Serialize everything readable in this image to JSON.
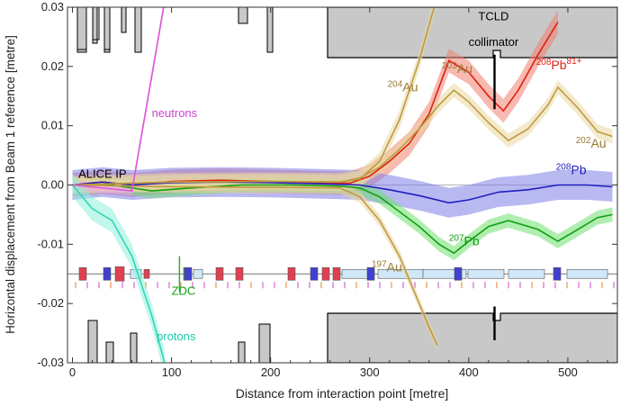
{
  "chart_data": {
    "type": "line",
    "xlabel": "Distance from interaction point [metre]",
    "ylabel": "Horizontal displacement from Beam 1 reference [metre]",
    "xlim": [
      -5,
      550
    ],
    "ylim": [
      -0.03,
      0.03
    ],
    "xticks": [
      0,
      100,
      200,
      300,
      400,
      500
    ],
    "yticks": [
      -0.03,
      -0.02,
      -0.01,
      0.0,
      0.01,
      0.02,
      0.03
    ],
    "xtick_labels": [
      "0",
      "100",
      "200",
      "300",
      "400",
      "500"
    ],
    "ytick_labels": [
      "-0.03",
      "-0.02",
      "-0.01",
      "0.00",
      "0.01",
      "0.02",
      "0.03"
    ],
    "grid": false,
    "reference_line_y": 0,
    "beamline_y": -0.015,
    "series": [
      {
        "key": "pb208_81",
        "color": "#e02010",
        "band": "#f08070",
        "x": [
          0,
          30,
          60,
          100,
          150,
          200,
          250,
          280,
          300,
          320,
          340,
          360,
          380,
          400,
          420,
          435,
          450,
          470,
          490
        ],
        "y": [
          0,
          0.0005,
          0,
          0.0006,
          0.0008,
          0.0006,
          0.0004,
          0.0003,
          0.0015,
          0.004,
          0.007,
          0.012,
          0.021,
          0.019,
          0.015,
          0.0125,
          0.016,
          0.022,
          0.0275
        ],
        "band_width": 0.002
      },
      {
        "key": "pb208",
        "color": "#2020c0",
        "band": "#8080e8",
        "x": [
          0,
          30,
          60,
          100,
          150,
          200,
          250,
          290,
          320,
          350,
          380,
          400,
          430,
          460,
          490,
          520,
          545
        ],
        "y": [
          0,
          0.0005,
          0,
          0.0004,
          0.0005,
          0.0004,
          0.0002,
          0,
          -0.0008,
          -0.0018,
          -0.003,
          -0.0025,
          -0.0012,
          -0.0008,
          0,
          0,
          -0.0003
        ],
        "band_width": 0.0025
      },
      {
        "key": "pb207",
        "color": "#10a010",
        "band": "#70e070",
        "x": [
          0,
          40,
          80,
          120,
          170,
          220,
          270,
          290,
          310,
          330,
          350,
          370,
          385,
          400,
          420,
          440,
          470,
          490,
          510,
          530,
          545
        ],
        "y": [
          0,
          0,
          -0.001,
          -0.0005,
          0,
          0,
          -0.0002,
          -0.0005,
          -0.002,
          -0.0045,
          -0.007,
          -0.01,
          -0.0115,
          -0.0095,
          -0.007,
          -0.006,
          -0.0075,
          -0.0095,
          -0.0075,
          -0.0055,
          -0.005
        ],
        "band_width": 0.0012
      },
      {
        "key": "au204",
        "color": "#c09a40",
        "band": "#ead7a0",
        "x": [
          0,
          100,
          200,
          270,
          290,
          310,
          330,
          350,
          365
        ],
        "y": [
          0,
          0.0005,
          0.0006,
          0.0005,
          0.001,
          0.004,
          0.011,
          0.021,
          0.03
        ],
        "band_width": 0.0015
      },
      {
        "key": "au203",
        "color": "#c09a40",
        "band": "#ead7a0",
        "x": [
          0,
          100,
          200,
          270,
          290,
          310,
          330,
          350,
          370,
          385,
          400,
          420,
          440,
          460,
          480,
          490,
          510,
          530,
          545
        ],
        "y": [
          0,
          0.0005,
          0.0006,
          0.0005,
          0.0012,
          0.003,
          0.006,
          0.0095,
          0.0135,
          0.016,
          0.014,
          0.0105,
          0.0075,
          0.0095,
          0.0135,
          0.0165,
          0.013,
          0.009,
          0.0082
        ],
        "band_width": 0.0012
      },
      {
        "key": "au197",
        "color": "#c09a40",
        "band": "#ead7a0",
        "x": [
          0,
          100,
          200,
          270,
          290,
          310,
          330,
          345,
          360,
          368
        ],
        "y": [
          0,
          -0.0003,
          -0.0004,
          -0.0005,
          -0.002,
          -0.006,
          -0.012,
          -0.018,
          -0.024,
          -0.027
        ],
        "band_width": 0.001
      },
      {
        "key": "neutrons",
        "color": "#dd55dd",
        "band": "#eea0ee",
        "x": [
          0,
          60,
          92
        ],
        "y": [
          0,
          -0.001,
          0.03
        ],
        "band_width": 0.0008
      },
      {
        "key": "protons",
        "color": "#30d8b8",
        "band": "#90f0dc",
        "x": [
          0,
          20,
          40,
          60,
          80,
          93
        ],
        "y": [
          0,
          -0.004,
          -0.006,
          -0.012,
          -0.022,
          -0.03
        ],
        "band_width": 0.002
      }
    ],
    "annotations": [
      {
        "name": "label-alice-ip",
        "text": "ALICE IP",
        "x": 6,
        "y": 0.0012,
        "color": "#000000"
      },
      {
        "name": "label-neutrons",
        "text": "neutrons",
        "x": 80,
        "y": 0.0115,
        "color": "#cc44cc"
      },
      {
        "name": "label-zdc",
        "text": "ZDC",
        "x": 100,
        "y": -0.0185,
        "color": "#10a010"
      },
      {
        "name": "label-protons",
        "text": "protons",
        "x": 85,
        "y": -0.0262,
        "color": "#20c8a8"
      },
      {
        "name": "label-tcld",
        "text": "TCLD",
        "x": 425,
        "y": 0.0278,
        "color": "#000000"
      },
      {
        "name": "label-collimator",
        "text": "collimator",
        "x": 425,
        "y": 0.0235,
        "color": "#000000"
      }
    ],
    "isotope_labels": [
      {
        "name": "label-pb208-81",
        "mass": "208",
        "sym": "Pb",
        "sup2": "81+",
        "x": 468,
        "y": 0.0195,
        "color": "#e02010"
      },
      {
        "name": "label-au203",
        "mass": "203",
        "sym": "Au",
        "x": 373,
        "y": 0.0189,
        "color": "#9a7a30"
      },
      {
        "name": "label-au204",
        "mass": "204",
        "sym": "Au",
        "x": 318,
        "y": 0.0158,
        "color": "#9a7a30"
      },
      {
        "name": "label-au202",
        "mass": "202",
        "sym": "Au",
        "x": 508,
        "y": 0.0063,
        "color": "#9a7a30"
      },
      {
        "name": "label-pb208",
        "mass": "208",
        "sym": "Pb",
        "x": 488,
        "y": 0.0018,
        "color": "#2020c0"
      },
      {
        "name": "label-pb207",
        "mass": "207",
        "sym": "Pb",
        "x": 380,
        "y": -0.0102,
        "color": "#10a010"
      },
      {
        "name": "label-au197",
        "mass": "197",
        "sym": "Au",
        "x": 302,
        "y": -0.0146,
        "color": "#9a7a30"
      }
    ]
  }
}
